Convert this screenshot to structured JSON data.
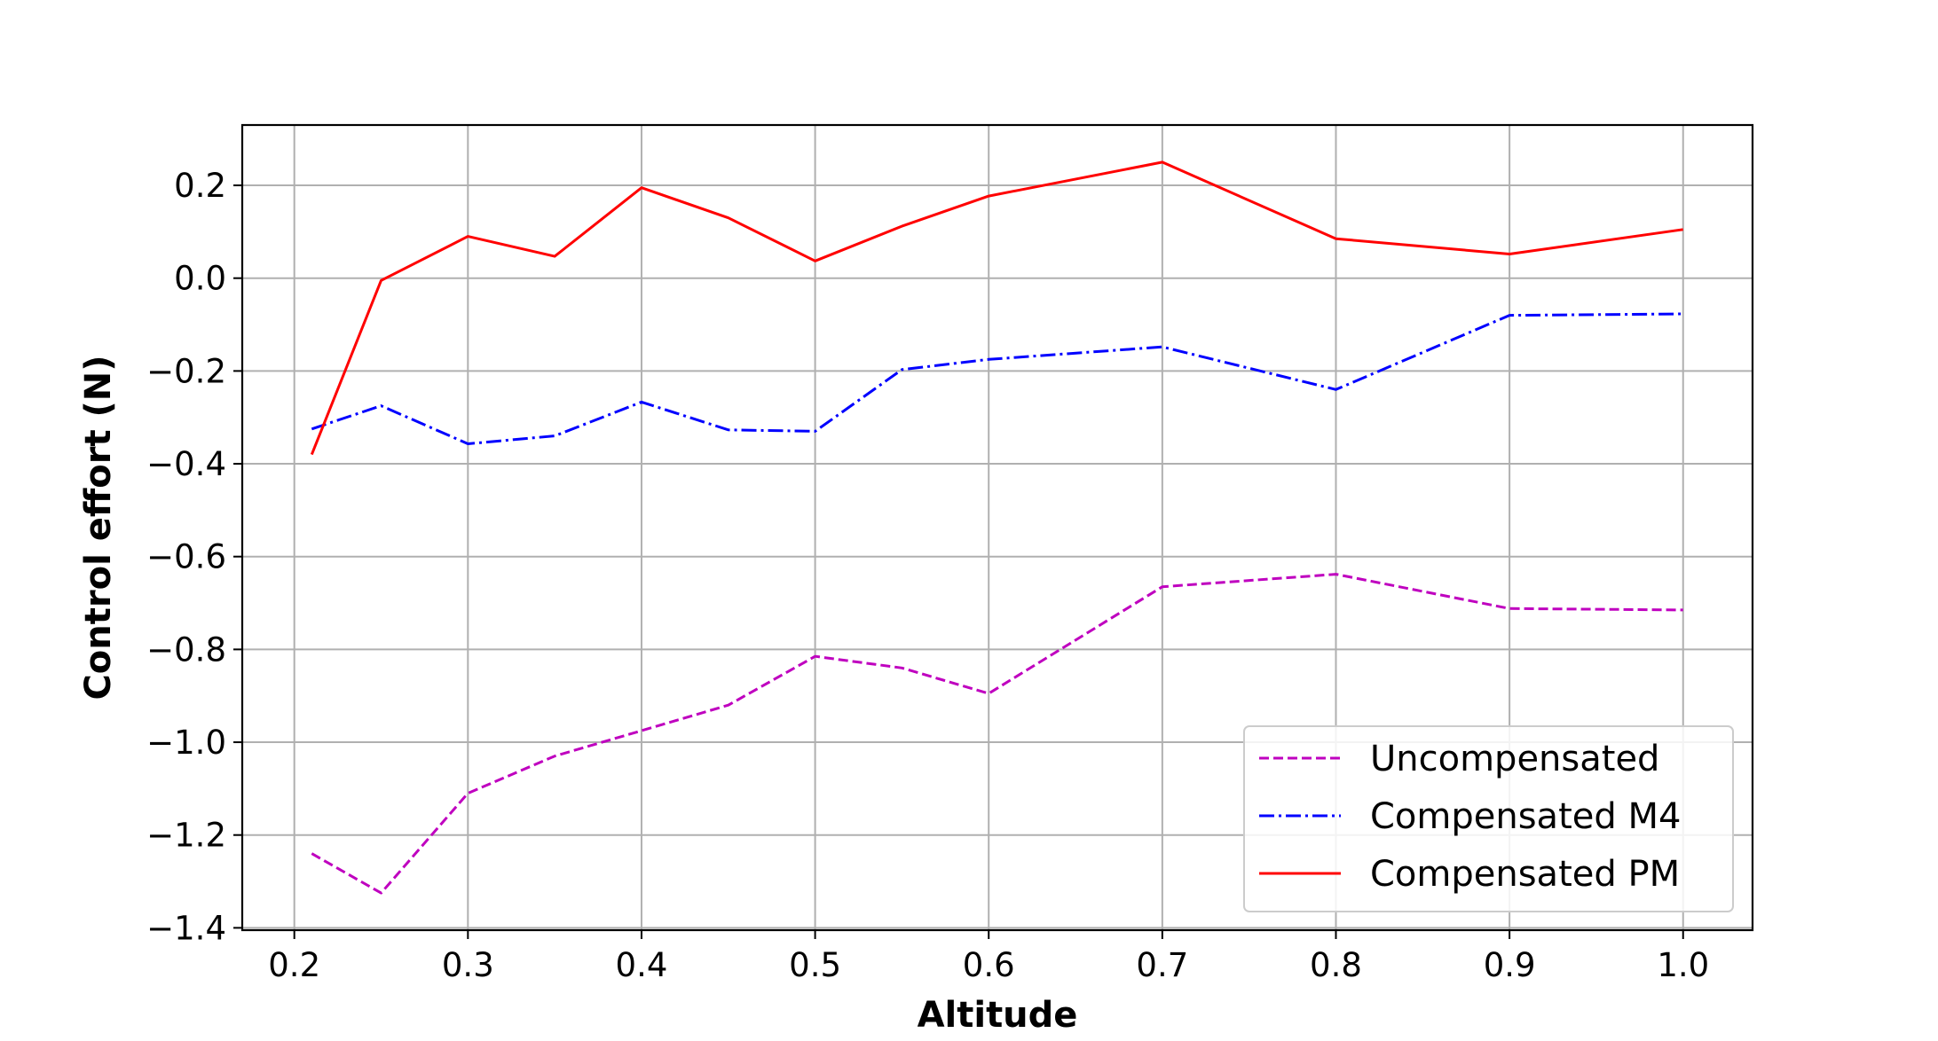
{
  "chart_data": {
    "type": "line",
    "title": "",
    "xlabel": "Altitude",
    "ylabel": "Control effort (N)",
    "xlim": [
      0.17,
      1.04
    ],
    "ylim": [
      -1.405,
      0.33
    ],
    "xticks": [
      0.2,
      0.3,
      0.4,
      0.5,
      0.6,
      0.7,
      0.8,
      0.9,
      1.0
    ],
    "xtick_labels": [
      "0.2",
      "0.3",
      "0.4",
      "0.5",
      "0.6",
      "0.7",
      "0.8",
      "0.9",
      "1.0"
    ],
    "yticks": [
      -1.4,
      -1.2,
      -1.0,
      -0.8,
      -0.6,
      -0.4,
      -0.2,
      0.0,
      0.2
    ],
    "ytick_labels": [
      "−1.4",
      "−1.2",
      "−1.0",
      "−0.8",
      "−0.6",
      "−0.4",
      "−0.2",
      "0.0",
      "0.2"
    ],
    "grid": true,
    "legend_position": "lower-right",
    "x": [
      0.21,
      0.25,
      0.3,
      0.35,
      0.4,
      0.45,
      0.5,
      0.55,
      0.6,
      0.7,
      0.8,
      0.9,
      1.0
    ],
    "series": [
      {
        "name": "Uncompensated",
        "color": "#bf00bf",
        "style": "dashed",
        "values": [
          -1.24,
          -1.325,
          -1.11,
          -1.03,
          -0.975,
          -0.92,
          -0.815,
          -0.84,
          -0.895,
          -0.665,
          -0.638,
          -0.712,
          -0.715
        ]
      },
      {
        "name": "Compensated M4",
        "color": "#0000ff",
        "style": "dashdot",
        "values": [
          -0.325,
          -0.275,
          -0.357,
          -0.34,
          -0.267,
          -0.327,
          -0.33,
          -0.197,
          -0.175,
          -0.148,
          -0.24,
          -0.08,
          -0.077
        ]
      },
      {
        "name": "Compensated PM",
        "color": "#ff0000",
        "style": "solid",
        "values": [
          -0.38,
          -0.005,
          0.09,
          0.047,
          0.195,
          0.13,
          0.037,
          0.112,
          0.177,
          0.25,
          0.085,
          0.052,
          0.105
        ]
      }
    ]
  }
}
